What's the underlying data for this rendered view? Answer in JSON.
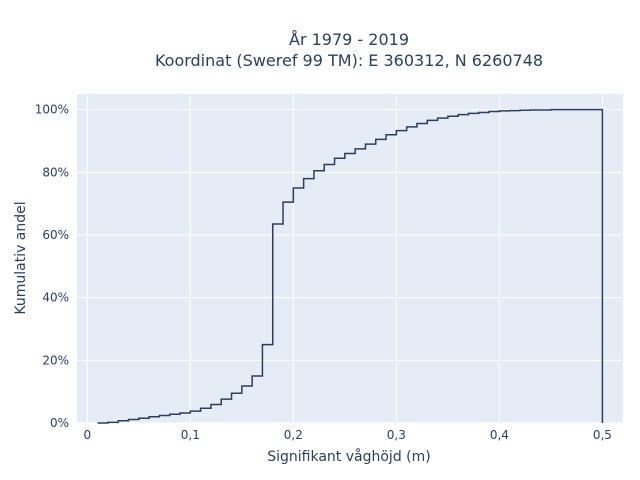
{
  "chart_data": {
    "type": "line",
    "line_shape": "step",
    "title_line1": "År 1979 - 2019",
    "title_line2": "Koordinat (Sweref 99 TM): E 360312, N 6260748",
    "xlabel": "Signifikant våghöjd (m)",
    "ylabel": "Kumulativ andel",
    "xlim": [
      -0.01,
      0.52
    ],
    "ylim": [
      0,
      1.05
    ],
    "x_ticks": [
      0,
      0.1,
      0.2,
      0.3,
      0.4,
      0.5
    ],
    "x_tick_labels": [
      "0",
      "0,1",
      "0,2",
      "0,3",
      "0,4",
      "0,5"
    ],
    "y_ticks": [
      0,
      0.2,
      0.4,
      0.6,
      0.8,
      1.0
    ],
    "y_tick_labels": [
      "0%",
      "20%",
      "40%",
      "60%",
      "80%",
      "100%"
    ],
    "grid": true,
    "colors": {
      "plot_bg": "#e5ecf6",
      "grid": "#ffffff",
      "line": "#2a3f5f",
      "text": "#2a3f5f"
    },
    "series": [
      {
        "bin_edges": [
          0.01,
          0.02,
          0.03,
          0.04,
          0.05,
          0.06,
          0.07,
          0.08,
          0.09,
          0.1,
          0.11,
          0.12,
          0.13,
          0.14,
          0.15,
          0.16,
          0.17,
          0.18,
          0.19,
          0.2,
          0.21,
          0.22,
          0.23,
          0.24,
          0.25,
          0.26,
          0.27,
          0.28,
          0.29,
          0.3,
          0.31,
          0.32,
          0.33,
          0.34,
          0.35,
          0.36,
          0.37,
          0.38,
          0.39,
          0.4,
          0.41,
          0.42,
          0.43,
          0.44,
          0.45,
          0.46,
          0.47,
          0.48,
          0.49,
          0.5
        ],
        "values": [
          0.0,
          0.002,
          0.007,
          0.011,
          0.015,
          0.02,
          0.024,
          0.028,
          0.032,
          0.038,
          0.047,
          0.059,
          0.076,
          0.095,
          0.118,
          0.15,
          0.25,
          0.635,
          0.705,
          0.75,
          0.78,
          0.805,
          0.825,
          0.845,
          0.86,
          0.875,
          0.89,
          0.905,
          0.92,
          0.933,
          0.945,
          0.956,
          0.966,
          0.973,
          0.979,
          0.984,
          0.988,
          0.991,
          0.994,
          0.996,
          0.997,
          0.998,
          0.999,
          0.999,
          1.0,
          1.0,
          1.0,
          1.0,
          1.0
        ]
      }
    ]
  }
}
